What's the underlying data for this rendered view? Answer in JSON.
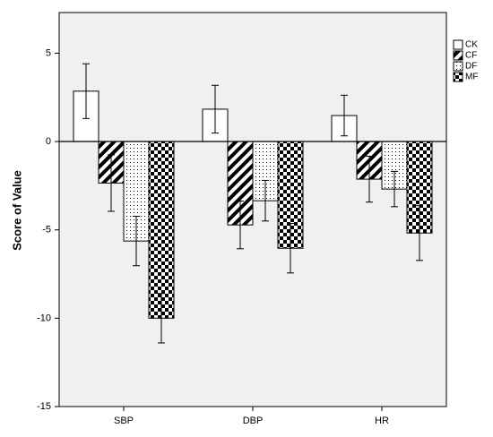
{
  "chart_data": {
    "type": "bar",
    "y_label": "Score of Value",
    "categories": [
      "SBP",
      "DBP",
      "HR"
    ],
    "series": [
      {
        "name": "CK",
        "color": "#ffffff",
        "pattern": "solid",
        "values": [
          2.85,
          1.83,
          1.47
        ],
        "errors": [
          1.55,
          1.35,
          1.15
        ]
      },
      {
        "name": "CF",
        "color": "#000000",
        "pattern": "hatch",
        "values": [
          -2.35,
          -4.72,
          -2.13
        ],
        "errors": [
          1.6,
          1.35,
          1.3
        ]
      },
      {
        "name": "DF",
        "color": "#000000",
        "pattern": "dots",
        "values": [
          -5.63,
          -3.35,
          -2.69
        ],
        "errors": [
          1.4,
          1.15,
          1.0
        ]
      },
      {
        "name": "MF",
        "color": "#000000",
        "pattern": "checker",
        "values": [
          -10.0,
          -6.04,
          -5.18
        ],
        "errors": [
          1.4,
          1.4,
          1.55
        ]
      }
    ],
    "ylim": [
      -15,
      7.3
    ],
    "yticks": [
      -15,
      -10,
      -5,
      0,
      5
    ],
    "grid": false,
    "legend": "top-right",
    "background": "#f0f0f0"
  }
}
